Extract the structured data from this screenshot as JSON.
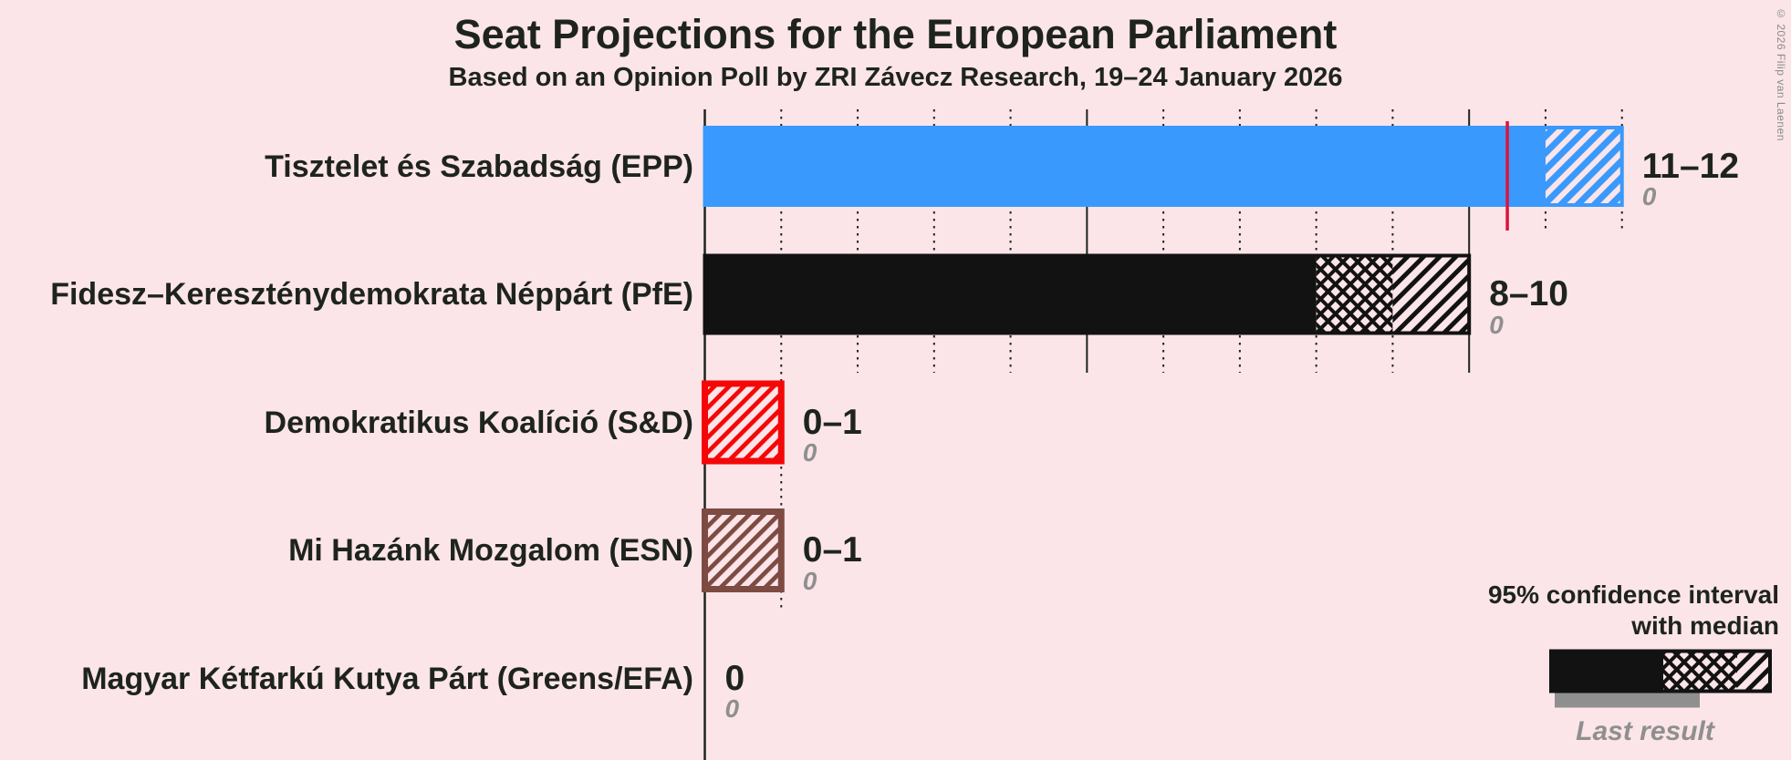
{
  "page": {
    "background_color": "#fbe5e9",
    "text_color": "#1e241d",
    "muted_color": "#8f8f8f"
  },
  "header": {
    "title": "Seat Projections for the European Parliament",
    "subtitle": "Based on an Opinion Poll by ZRI Závecz Research, 19–24 January 2026"
  },
  "copyright": "© 2026 Filip van Laenen",
  "legend": {
    "ci_line1": "95% confidence interval",
    "ci_line2": "with median",
    "last_result_label": "Last result"
  },
  "chart_data": {
    "type": "bar",
    "orientation": "horizontal",
    "x_axis": {
      "min": 0,
      "max": 12,
      "unit": "seats",
      "major_gridline_interval": 5,
      "minor_gridline_interval": 1,
      "major_style": "solid",
      "minor_style": "dotted"
    },
    "majority_line": {
      "value": 10.5,
      "color": "#dc143c"
    },
    "rows": [
      {
        "party": "Tisztelet és Szabadság (EPP)",
        "ci_low": 11,
        "median": 11,
        "ci_high": 12,
        "ci_label": "11–12",
        "last_result": 0,
        "last_result_label": "0",
        "color": "#3a99fc"
      },
      {
        "party": "Fidesz–Kereszténydemokrata Néppárt (PfE)",
        "ci_low": 8,
        "median": 9,
        "ci_high": 10,
        "ci_label": "8–10",
        "last_result": 0,
        "last_result_label": "0",
        "color": "#121212"
      },
      {
        "party": "Demokratikus Koalíció (S&D)",
        "ci_low": 0,
        "median": 0,
        "ci_high": 1,
        "ci_label": "0–1",
        "last_result": 0,
        "last_result_label": "0",
        "color": "#f50708"
      },
      {
        "party": "Mi Hazánk Mozgalom (ESN)",
        "ci_low": 0,
        "median": 0,
        "ci_high": 1,
        "ci_label": "0–1",
        "last_result": 0,
        "last_result_label": "0",
        "color": "#7d4b42"
      },
      {
        "party": "Magyar Kétfarkú Kutya Párt (Greens/EFA)",
        "ci_low": 0,
        "median": 0,
        "ci_high": 0,
        "ci_label": "0",
        "last_result": 0,
        "last_result_label": "0",
        "color": null
      }
    ]
  }
}
